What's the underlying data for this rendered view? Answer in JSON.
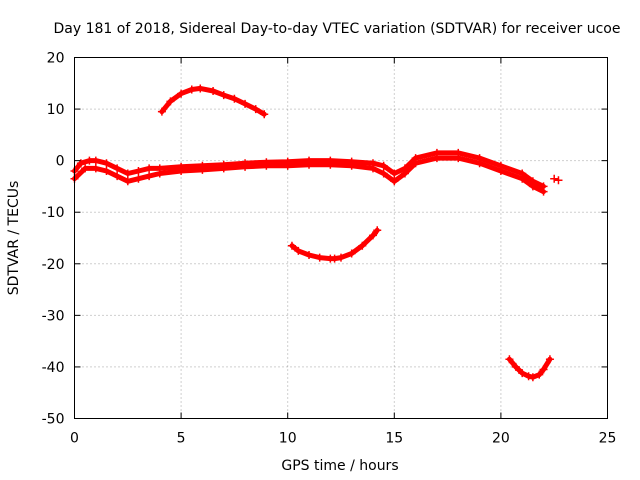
{
  "chart_data": {
    "type": "scatter",
    "title": "Day 181 of 2018, Sidereal Day-to-day VTEC variation (SDTVAR) for receiver ucoe",
    "xlabel": "GPS time / hours",
    "ylabel": "SDTVAR / TECUs",
    "xlim": [
      0,
      25
    ],
    "ylim": [
      -50,
      20
    ],
    "xticks": [
      0,
      5,
      10,
      15,
      20,
      25
    ],
    "xtick_labels": [
      "0",
      "5",
      "10",
      "15",
      "20",
      "25"
    ],
    "yticks": [
      -50,
      -40,
      -30,
      -20,
      -10,
      0,
      10,
      20
    ],
    "ytick_labels": [
      "-50",
      "-40",
      "-30",
      "-20",
      "-10",
      "0",
      "10",
      "20"
    ],
    "grid": true,
    "color": "#ff0000",
    "series": [
      {
        "name": "main-band-upper",
        "x": [
          0.0,
          0.3,
          0.7,
          1.0,
          1.5,
          2.0,
          2.5,
          3.0,
          3.5,
          4.0,
          5.0,
          6.0,
          7.0,
          8.0,
          9.0,
          10.0,
          11.0,
          12.0,
          13.0,
          14.0,
          14.5,
          15.0,
          15.5,
          16.0,
          17.0,
          18.0,
          19.0,
          20.0,
          21.0,
          21.5,
          22.0
        ],
        "y": [
          -2.0,
          -0.5,
          0.0,
          0.0,
          -0.5,
          -1.5,
          -2.5,
          -2.0,
          -1.5,
          -1.5,
          -1.2,
          -1.0,
          -0.8,
          -0.5,
          -0.3,
          -0.2,
          0.0,
          0.0,
          -0.2,
          -0.5,
          -1.0,
          -2.5,
          -1.5,
          0.5,
          1.5,
          1.5,
          0.5,
          -1.0,
          -2.5,
          -4.0,
          -5.0
        ]
      },
      {
        "name": "main-band-lower",
        "x": [
          0.0,
          0.5,
          1.0,
          1.5,
          2.0,
          2.5,
          3.0,
          3.5,
          4.0,
          5.0,
          6.0,
          7.0,
          8.0,
          9.0,
          10.0,
          11.0,
          12.0,
          13.0,
          14.0,
          14.5,
          15.0,
          15.5,
          16.0,
          17.0,
          18.0,
          19.0,
          20.0,
          21.0,
          21.5,
          22.0
        ],
        "y": [
          -3.5,
          -1.5,
          -1.5,
          -2.0,
          -3.0,
          -4.0,
          -3.5,
          -3.0,
          -2.5,
          -2.0,
          -1.8,
          -1.5,
          -1.2,
          -1.0,
          -1.0,
          -0.8,
          -0.8,
          -1.0,
          -1.5,
          -2.5,
          -4.0,
          -2.5,
          -0.5,
          0.5,
          0.5,
          -0.5,
          -2.0,
          -3.5,
          -5.0,
          -6.0
        ]
      },
      {
        "name": "arc-top",
        "x": [
          4.1,
          4.5,
          5.0,
          5.5,
          5.9,
          6.5,
          7.0,
          7.5,
          8.0,
          8.5,
          8.9
        ],
        "y": [
          9.5,
          11.5,
          13.0,
          13.8,
          14.0,
          13.5,
          12.7,
          12.0,
          11.0,
          10.0,
          9.0
        ]
      },
      {
        "name": "arc-mid",
        "x": [
          10.2,
          10.5,
          11.0,
          11.5,
          12.0,
          12.2,
          12.5,
          13.0,
          13.5,
          14.0,
          14.2
        ],
        "y": [
          -16.5,
          -17.5,
          -18.3,
          -18.8,
          -19.0,
          -19.0,
          -18.8,
          -18.0,
          -16.5,
          -14.5,
          -13.5
        ]
      },
      {
        "name": "arc-bottom",
        "x": [
          20.4,
          20.7,
          21.0,
          21.3,
          21.5,
          21.8,
          22.0,
          22.3
        ],
        "y": [
          -38.5,
          -40.0,
          -41.2,
          -41.8,
          -42.0,
          -41.5,
          -40.5,
          -38.5
        ]
      },
      {
        "name": "tail-points",
        "x": [
          22.5,
          22.7
        ],
        "y": [
          -3.5,
          -3.8
        ]
      }
    ]
  }
}
